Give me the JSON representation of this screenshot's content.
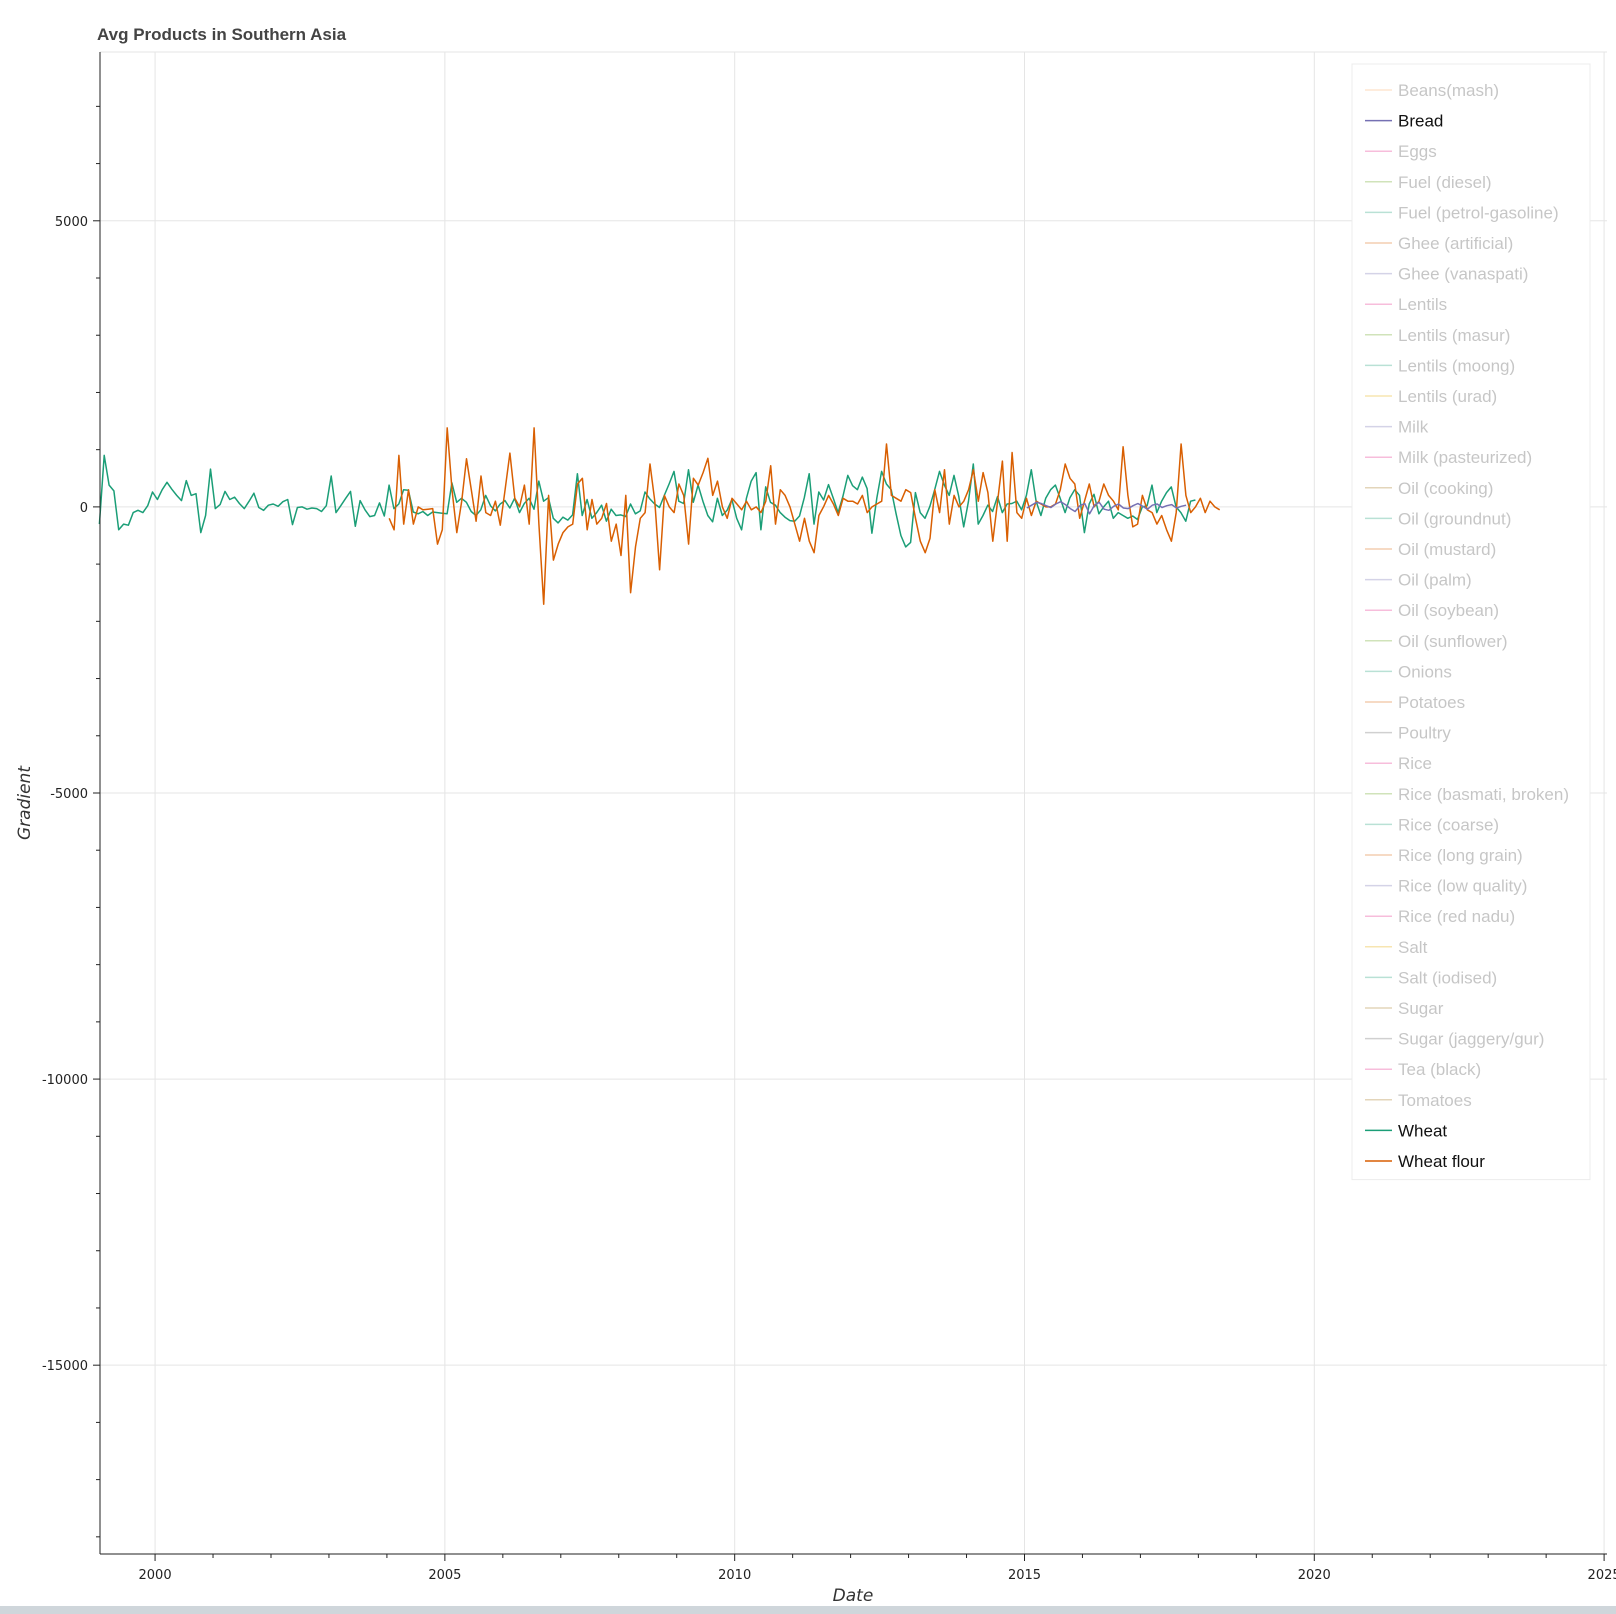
{
  "chart_data": {
    "type": "line",
    "title": "Avg Products in Southern Asia",
    "xlabel": "Date",
    "ylabel": "Gradient",
    "xlim": [
      1999.05,
      2025.05
    ],
    "ylim": [
      -18300,
      7950
    ],
    "x_ticks": [
      2000,
      2005,
      2010,
      2015,
      2020,
      2025
    ],
    "y_ticks": [
      5000,
      0,
      -5000,
      -10000,
      -15000
    ],
    "x_tick_labels": [
      "2000",
      "2005",
      "2010",
      "2015",
      "2020",
      "2025"
    ],
    "y_tick_labels": [
      "5000",
      "0",
      "-5000",
      "-10000",
      "-15000"
    ],
    "grid": true,
    "legend_position": "top-right",
    "legend": [
      {
        "label": "Beans(mash)",
        "color": "#fdae6b",
        "active": false
      },
      {
        "label": "Bread",
        "color": "#7570b3",
        "active": true
      },
      {
        "label": "Eggs",
        "color": "#e7298a",
        "active": false
      },
      {
        "label": "Fuel (diesel)",
        "color": "#66a61e",
        "active": false
      },
      {
        "label": "Fuel (petrol-gasoline)",
        "color": "#1b9e77",
        "active": false
      },
      {
        "label": "Ghee (artificial)",
        "color": "#d95f02",
        "active": false
      },
      {
        "label": "Ghee (vanaspati)",
        "color": "#7570b3",
        "active": false
      },
      {
        "label": "Lentils",
        "color": "#e7298a",
        "active": false
      },
      {
        "label": "Lentils (masur)",
        "color": "#66a61e",
        "active": false
      },
      {
        "label": "Lentils (moong)",
        "color": "#1b9e77",
        "active": false
      },
      {
        "label": "Lentils (urad)",
        "color": "#e6ab02",
        "active": false
      },
      {
        "label": "Milk",
        "color": "#7570b3",
        "active": false
      },
      {
        "label": "Milk (pasteurized)",
        "color": "#e7298a",
        "active": false
      },
      {
        "label": "Oil (cooking)",
        "color": "#a6761d",
        "active": false
      },
      {
        "label": "Oil (groundnut)",
        "color": "#1b9e77",
        "active": false
      },
      {
        "label": "Oil (mustard)",
        "color": "#d95f02",
        "active": false
      },
      {
        "label": "Oil (palm)",
        "color": "#7570b3",
        "active": false
      },
      {
        "label": "Oil (soybean)",
        "color": "#e7298a",
        "active": false
      },
      {
        "label": "Oil (sunflower)",
        "color": "#66a61e",
        "active": false
      },
      {
        "label": "Onions",
        "color": "#1b9e77",
        "active": false
      },
      {
        "label": "Potatoes",
        "color": "#d95f02",
        "active": false
      },
      {
        "label": "Poultry",
        "color": "#666666",
        "active": false
      },
      {
        "label": "Rice",
        "color": "#e7298a",
        "active": false
      },
      {
        "label": "Rice (basmati, broken)",
        "color": "#66a61e",
        "active": false
      },
      {
        "label": "Rice (coarse)",
        "color": "#1b9e77",
        "active": false
      },
      {
        "label": "Rice (long grain)",
        "color": "#d95f02",
        "active": false
      },
      {
        "label": "Rice (low quality)",
        "color": "#7570b3",
        "active": false
      },
      {
        "label": "Rice (red nadu)",
        "color": "#e7298a",
        "active": false
      },
      {
        "label": "Salt",
        "color": "#e6ab02",
        "active": false
      },
      {
        "label": "Salt (iodised)",
        "color": "#1b9e77",
        "active": false
      },
      {
        "label": "Sugar",
        "color": "#a6761d",
        "active": false
      },
      {
        "label": "Sugar (jaggery/gur)",
        "color": "#666666",
        "active": false
      },
      {
        "label": "Tea (black)",
        "color": "#e7298a",
        "active": false
      },
      {
        "label": "Tomatoes",
        "color": "#a6761d",
        "active": false
      },
      {
        "label": "Wheat",
        "color": "#1b9e77",
        "active": true
      },
      {
        "label": "Wheat flour",
        "color": "#d95f02",
        "active": true
      }
    ],
    "series": [
      {
        "name": "Wheat",
        "color": "#1b9e77",
        "x_start": 1999.04,
        "x_step": 0.0833,
        "values": [
          -300,
          900,
          380,
          280,
          -400,
          -300,
          -320,
          -100,
          -60,
          -100,
          20,
          260,
          130,
          300,
          430,
          310,
          200,
          110,
          460,
          200,
          230,
          -450,
          -150,
          660,
          -30,
          40,
          270,
          130,
          170,
          60,
          -30,
          100,
          240,
          -10,
          -60,
          30,
          50,
          10,
          90,
          130,
          -310,
          -10,
          0,
          -40,
          -20,
          -30,
          -80,
          20,
          540,
          -100,
          20,
          150,
          270,
          -340,
          110,
          -50,
          -170,
          -150,
          70,
          -160,
          380,
          -30,
          50,
          300,
          290,
          -90,
          -120,
          -80,
          -150,
          -90,
          -100,
          -110,
          -120,
          420,
          80,
          150,
          80,
          -80,
          -150,
          -50,
          200,
          20,
          -70,
          50,
          110,
          -20,
          150,
          -100,
          60,
          150,
          -40,
          450,
          100,
          160,
          -200,
          -280,
          -180,
          -230,
          -140,
          580,
          -150,
          130,
          -200,
          -100,
          30,
          -250,
          -40,
          -150,
          -140,
          -170,
          50,
          -120,
          -70,
          260,
          140,
          50,
          -10,
          200,
          400,
          620,
          100,
          60,
          650,
          80,
          380,
          100,
          -150,
          -260,
          150,
          -150,
          -60,
          130,
          -200,
          -400,
          150,
          450,
          600,
          -400,
          350,
          80,
          30,
          -100,
          -180,
          -240,
          -250,
          -160,
          160,
          580,
          -300,
          260,
          120,
          390,
          150,
          -100,
          190,
          550,
          370,
          300,
          520,
          320,
          -460,
          150,
          620,
          400,
          300,
          -120,
          -500,
          -700,
          -620,
          250,
          -100,
          -200,
          10,
          300,
          620,
          380,
          200,
          550,
          180,
          -350,
          100,
          750,
          -300,
          -150,
          30,
          -80,
          180,
          -100,
          50,
          60,
          100,
          -50,
          200,
          650,
          100,
          -150,
          150,
          300,
          380,
          150,
          -100,
          160,
          300,
          200,
          -450,
          50,
          220,
          -120,
          0,
          100,
          -200,
          -100,
          -150,
          -200,
          -160,
          -220,
          0,
          20,
          380,
          -100,
          100,
          250,
          350,
          0,
          -100,
          -250,
          100,
          120
        ]
      },
      {
        "name": "Wheat flour",
        "color": "#d95f02",
        "x_start": 2004.04,
        "x_step": 0.0833,
        "values": [
          -200,
          -400,
          900,
          -300,
          300,
          -300,
          0,
          -50,
          -40,
          -30,
          -650,
          -400,
          1380,
          300,
          -450,
          100,
          840,
          300,
          -250,
          540,
          -100,
          -150,
          100,
          -320,
          300,
          940,
          150,
          0,
          380,
          -300,
          1380,
          -300,
          -1700,
          200,
          -930,
          -650,
          -450,
          -350,
          -300,
          400,
          500,
          -400,
          130,
          -300,
          -200,
          60,
          -600,
          -300,
          -850,
          200,
          -1500,
          -700,
          -200,
          -100,
          750,
          100,
          -1100,
          200,
          0,
          -100,
          400,
          200,
          -650,
          500,
          380,
          600,
          850,
          200,
          450,
          0,
          -200,
          150,
          50,
          -50,
          100,
          -50,
          0,
          -100,
          100,
          720,
          -300,
          300,
          200,
          0,
          -300,
          -600,
          -200,
          -600,
          -800,
          -150,
          10,
          200,
          50,
          -150,
          150,
          100,
          100,
          50,
          200,
          -100,
          0,
          50,
          100,
          1100,
          200,
          150,
          100,
          300,
          250,
          -200,
          -600,
          -800,
          -550,
          300,
          -100,
          650,
          -300,
          200,
          0,
          100,
          300,
          650,
          100,
          600,
          250,
          -600,
          100,
          800,
          -600,
          950,
          -100,
          -200,
          150,
          -150,
          100,
          50,
          0,
          0,
          50,
          300,
          750,
          500,
          400,
          -200,
          100,
          400,
          0,
          100,
          400,
          200,
          100,
          -50,
          1050,
          200,
          -350,
          -300,
          200,
          -50,
          -100,
          -300,
          -150,
          -400,
          -600,
          -100,
          1100,
          200,
          -100,
          0,
          150,
          -100,
          100,
          0,
          -50
        ]
      },
      {
        "name": "Bread",
        "color": "#7570b3",
        "x_start": 2015.04,
        "x_step": 0.0833,
        "values": [
          -20,
          30,
          80,
          60,
          20,
          -10,
          50,
          90,
          40,
          -30,
          -80,
          20,
          60,
          -120,
          30,
          80,
          -40,
          -60,
          10,
          50,
          -20,
          -30,
          20,
          60,
          10,
          -40,
          30,
          50,
          -10,
          20,
          40,
          -20,
          10,
          30
        ]
      }
    ]
  }
}
